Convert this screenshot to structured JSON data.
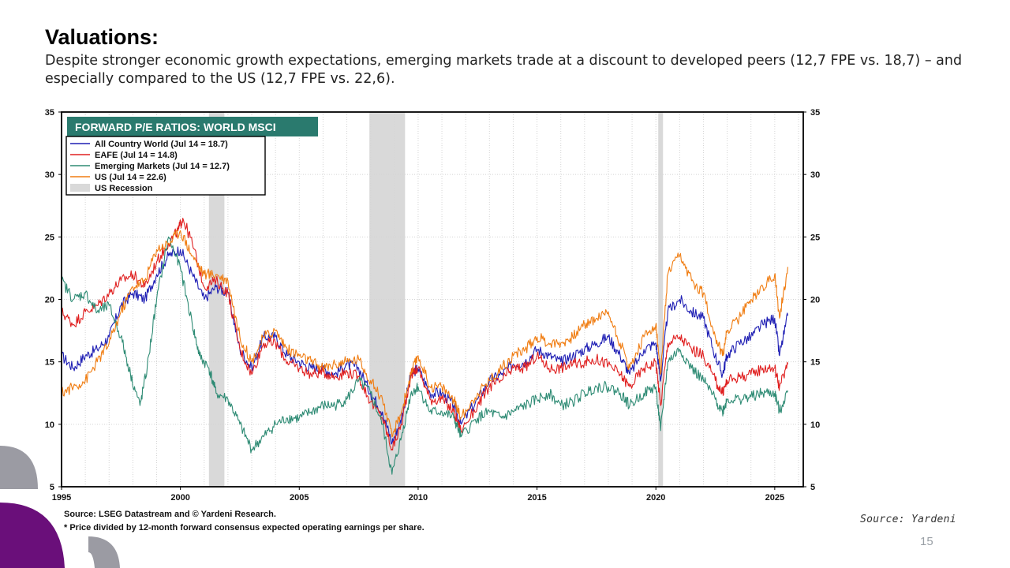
{
  "slide": {
    "title": "Valuations:",
    "subtitle": "Despite stronger economic growth expectations, emerging markets trade at a discount to developed peers (12,7 FPE vs. 18,7) – and especially compared to the US (12,7 FPE vs. 22,6).",
    "source_credit": "Source: Yardeni",
    "page_number": "15"
  },
  "chart_data": {
    "type": "line",
    "title": "FORWARD P/E RATIOS: WORLD MSCI",
    "xlim": [
      1995,
      2026.2
    ],
    "ylim": [
      5,
      35
    ],
    "x_ticks": [
      1995,
      2000,
      2005,
      2010,
      2015,
      2020,
      2025
    ],
    "y_ticks": [
      5,
      10,
      15,
      20,
      25,
      30,
      35
    ],
    "grid": true,
    "legend_position": "top-left",
    "recessions": [
      {
        "start": 2001.2,
        "end": 2001.85
      },
      {
        "start": 2007.95,
        "end": 2009.45
      },
      {
        "start": 2020.1,
        "end": 2020.3
      }
    ],
    "recession_label": "US Recession",
    "series": [
      {
        "name": "All Country World (Jul 14 = 18.7)",
        "color": "#1f1fb4",
        "x": [
          1995.0,
          1995.5,
          1996.0,
          1996.5,
          1997.0,
          1997.5,
          1998.0,
          1998.5,
          1999.0,
          1999.5,
          2000.0,
          2000.5,
          2001.0,
          2001.5,
          2002.0,
          2002.5,
          2003.0,
          2003.5,
          2004.0,
          2004.5,
          2005.0,
          2005.5,
          2006.0,
          2006.5,
          2007.0,
          2007.5,
          2008.0,
          2008.5,
          2008.9,
          2009.3,
          2009.7,
          2010.0,
          2010.5,
          2011.0,
          2011.5,
          2011.8,
          2012.5,
          2013.0,
          2013.5,
          2014.0,
          2014.5,
          2015.0,
          2015.5,
          2016.0,
          2016.5,
          2017.0,
          2017.5,
          2018.0,
          2018.5,
          2018.9,
          2019.5,
          2020.0,
          2020.2,
          2020.5,
          2021.0,
          2021.5,
          2022.0,
          2022.5,
          2022.8,
          2023.0,
          2023.5,
          2024.0,
          2024.5,
          2025.0,
          2025.2,
          2025.55
        ],
        "y": [
          15.5,
          14.5,
          15.5,
          16.0,
          17.0,
          19.5,
          20.5,
          20.0,
          22.0,
          23.5,
          24.0,
          22.0,
          20.0,
          21.0,
          20.5,
          16.0,
          14.5,
          17.0,
          17.0,
          15.5,
          15.0,
          14.5,
          14.5,
          14.0,
          14.8,
          14.5,
          12.5,
          11.0,
          8.5,
          10.5,
          14.0,
          14.5,
          12.5,
          12.5,
          11.5,
          10.0,
          12.0,
          13.5,
          14.0,
          14.8,
          15.0,
          16.0,
          15.5,
          15.0,
          15.5,
          16.0,
          16.5,
          17.0,
          15.5,
          14.0,
          16.0,
          16.5,
          13.5,
          19.0,
          20.0,
          19.0,
          18.5,
          15.5,
          14.0,
          15.5,
          16.5,
          17.0,
          18.0,
          18.5,
          15.5,
          18.7
        ]
      },
      {
        "name": "EAFE (Jul 14 = 14.8)",
        "color": "#e02020",
        "x": [
          1995.0,
          1995.5,
          1996.0,
          1996.5,
          1997.0,
          1997.5,
          1998.0,
          1998.5,
          1999.0,
          1999.5,
          1999.9,
          2000.1,
          2000.5,
          2001.0,
          2001.5,
          2002.0,
          2002.5,
          2003.0,
          2003.5,
          2004.0,
          2004.5,
          2005.0,
          2005.5,
          2006.0,
          2006.5,
          2007.0,
          2007.5,
          2008.0,
          2008.5,
          2008.9,
          2009.3,
          2009.7,
          2010.0,
          2010.5,
          2011.0,
          2011.5,
          2011.8,
          2012.5,
          2013.0,
          2013.5,
          2014.0,
          2014.5,
          2015.0,
          2015.5,
          2016.0,
          2016.5,
          2017.0,
          2017.5,
          2018.0,
          2018.5,
          2018.9,
          2019.5,
          2020.0,
          2020.2,
          2020.5,
          2021.0,
          2021.5,
          2022.0,
          2022.5,
          2022.8,
          2023.0,
          2023.5,
          2024.0,
          2024.5,
          2025.0,
          2025.2,
          2025.55
        ],
        "y": [
          19.0,
          18.0,
          19.0,
          19.5,
          20.5,
          21.5,
          22.0,
          21.0,
          23.0,
          24.5,
          25.5,
          26.5,
          24.5,
          21.0,
          21.5,
          20.5,
          16.0,
          14.0,
          16.5,
          16.5,
          15.0,
          14.5,
          14.0,
          14.2,
          13.8,
          14.2,
          13.8,
          11.8,
          10.5,
          8.0,
          10.0,
          14.0,
          14.5,
          12.0,
          12.0,
          11.0,
          9.5,
          11.5,
          13.0,
          13.5,
          14.5,
          14.5,
          15.5,
          14.5,
          14.5,
          14.8,
          15.0,
          15.2,
          14.8,
          14.0,
          13.0,
          14.5,
          15.0,
          11.5,
          16.5,
          17.0,
          16.0,
          15.5,
          13.5,
          12.5,
          13.5,
          13.8,
          14.0,
          14.5,
          14.5,
          13.0,
          14.8
        ]
      },
      {
        "name": "Emerging Markets (Jul 14 = 12.7)",
        "color": "#2e8b74",
        "x": [
          1995.0,
          1995.5,
          1996.0,
          1996.5,
          1997.0,
          1997.5,
          1997.9,
          1998.3,
          1998.6,
          1999.0,
          1999.5,
          2000.0,
          2000.5,
          2000.8,
          2001.2,
          2001.5,
          2002.0,
          2002.5,
          2003.0,
          2003.5,
          2004.0,
          2004.5,
          2005.0,
          2005.5,
          2006.0,
          2006.5,
          2007.0,
          2007.5,
          2008.0,
          2008.5,
          2008.9,
          2009.3,
          2009.7,
          2010.0,
          2010.5,
          2011.0,
          2011.5,
          2011.8,
          2012.5,
          2013.0,
          2013.5,
          2014.0,
          2014.5,
          2015.0,
          2015.5,
          2016.0,
          2016.5,
          2017.0,
          2017.5,
          2018.0,
          2018.5,
          2018.9,
          2019.5,
          2020.0,
          2020.2,
          2020.5,
          2021.0,
          2021.5,
          2022.0,
          2022.5,
          2022.8,
          2023.0,
          2023.5,
          2024.0,
          2024.5,
          2025.0,
          2025.2,
          2025.55
        ],
        "y": [
          21.5,
          20.0,
          20.5,
          19.0,
          19.5,
          17.0,
          14.0,
          11.5,
          14.5,
          20.0,
          25.0,
          22.5,
          18.0,
          15.5,
          14.5,
          12.5,
          12.0,
          10.0,
          8.0,
          9.0,
          10.0,
          10.5,
          10.5,
          11.0,
          11.5,
          11.5,
          12.0,
          13.5,
          12.5,
          10.0,
          6.0,
          9.0,
          12.5,
          13.0,
          11.0,
          11.0,
          10.5,
          9.0,
          10.5,
          11.0,
          10.5,
          11.0,
          11.5,
          12.0,
          12.5,
          11.5,
          11.8,
          12.5,
          13.0,
          13.0,
          12.5,
          11.5,
          12.5,
          13.0,
          9.5,
          15.0,
          16.0,
          14.5,
          13.5,
          12.0,
          11.0,
          12.0,
          12.0,
          12.2,
          12.5,
          12.5,
          11.0,
          12.7
        ]
      },
      {
        "name": "US (Jul 14 = 22.6)",
        "color": "#f07d12",
        "x": [
          1995.0,
          1995.5,
          1996.0,
          1996.5,
          1997.0,
          1997.5,
          1998.0,
          1998.5,
          1999.0,
          1999.5,
          2000.0,
          2000.5,
          2001.0,
          2001.5,
          2002.0,
          2002.5,
          2003.0,
          2003.5,
          2004.0,
          2004.5,
          2005.0,
          2005.5,
          2006.0,
          2006.5,
          2007.0,
          2007.5,
          2008.0,
          2008.5,
          2008.9,
          2009.3,
          2009.7,
          2010.0,
          2010.5,
          2011.0,
          2011.5,
          2011.8,
          2012.5,
          2013.0,
          2013.5,
          2014.0,
          2014.5,
          2015.0,
          2015.5,
          2016.0,
          2016.5,
          2017.0,
          2017.5,
          2018.0,
          2018.5,
          2018.9,
          2019.5,
          2020.0,
          2020.2,
          2020.5,
          2021.0,
          2021.5,
          2022.0,
          2022.5,
          2022.8,
          2023.0,
          2023.5,
          2024.0,
          2024.5,
          2025.0,
          2025.2,
          2025.55
        ],
        "y": [
          12.5,
          13.0,
          13.5,
          15.0,
          16.5,
          19.0,
          21.0,
          21.5,
          24.0,
          24.5,
          25.5,
          23.5,
          22.0,
          22.0,
          21.5,
          17.0,
          15.0,
          17.0,
          17.5,
          16.0,
          15.5,
          15.0,
          14.5,
          14.8,
          15.0,
          15.2,
          13.5,
          12.0,
          9.0,
          11.0,
          14.0,
          15.5,
          13.0,
          13.0,
          12.0,
          10.5,
          12.5,
          13.5,
          14.5,
          15.5,
          16.0,
          17.0,
          16.5,
          16.5,
          17.0,
          18.0,
          18.5,
          19.0,
          16.5,
          14.5,
          17.0,
          18.0,
          14.0,
          22.0,
          23.5,
          21.5,
          20.5,
          17.0,
          15.5,
          17.5,
          18.5,
          20.0,
          21.0,
          22.0,
          18.5,
          22.6
        ]
      }
    ],
    "footnotes": [
      "Source: LSEG Datastream and © Yardeni Research.",
      "* Price divided by 12-month forward consensus expected operating earnings per share."
    ]
  }
}
